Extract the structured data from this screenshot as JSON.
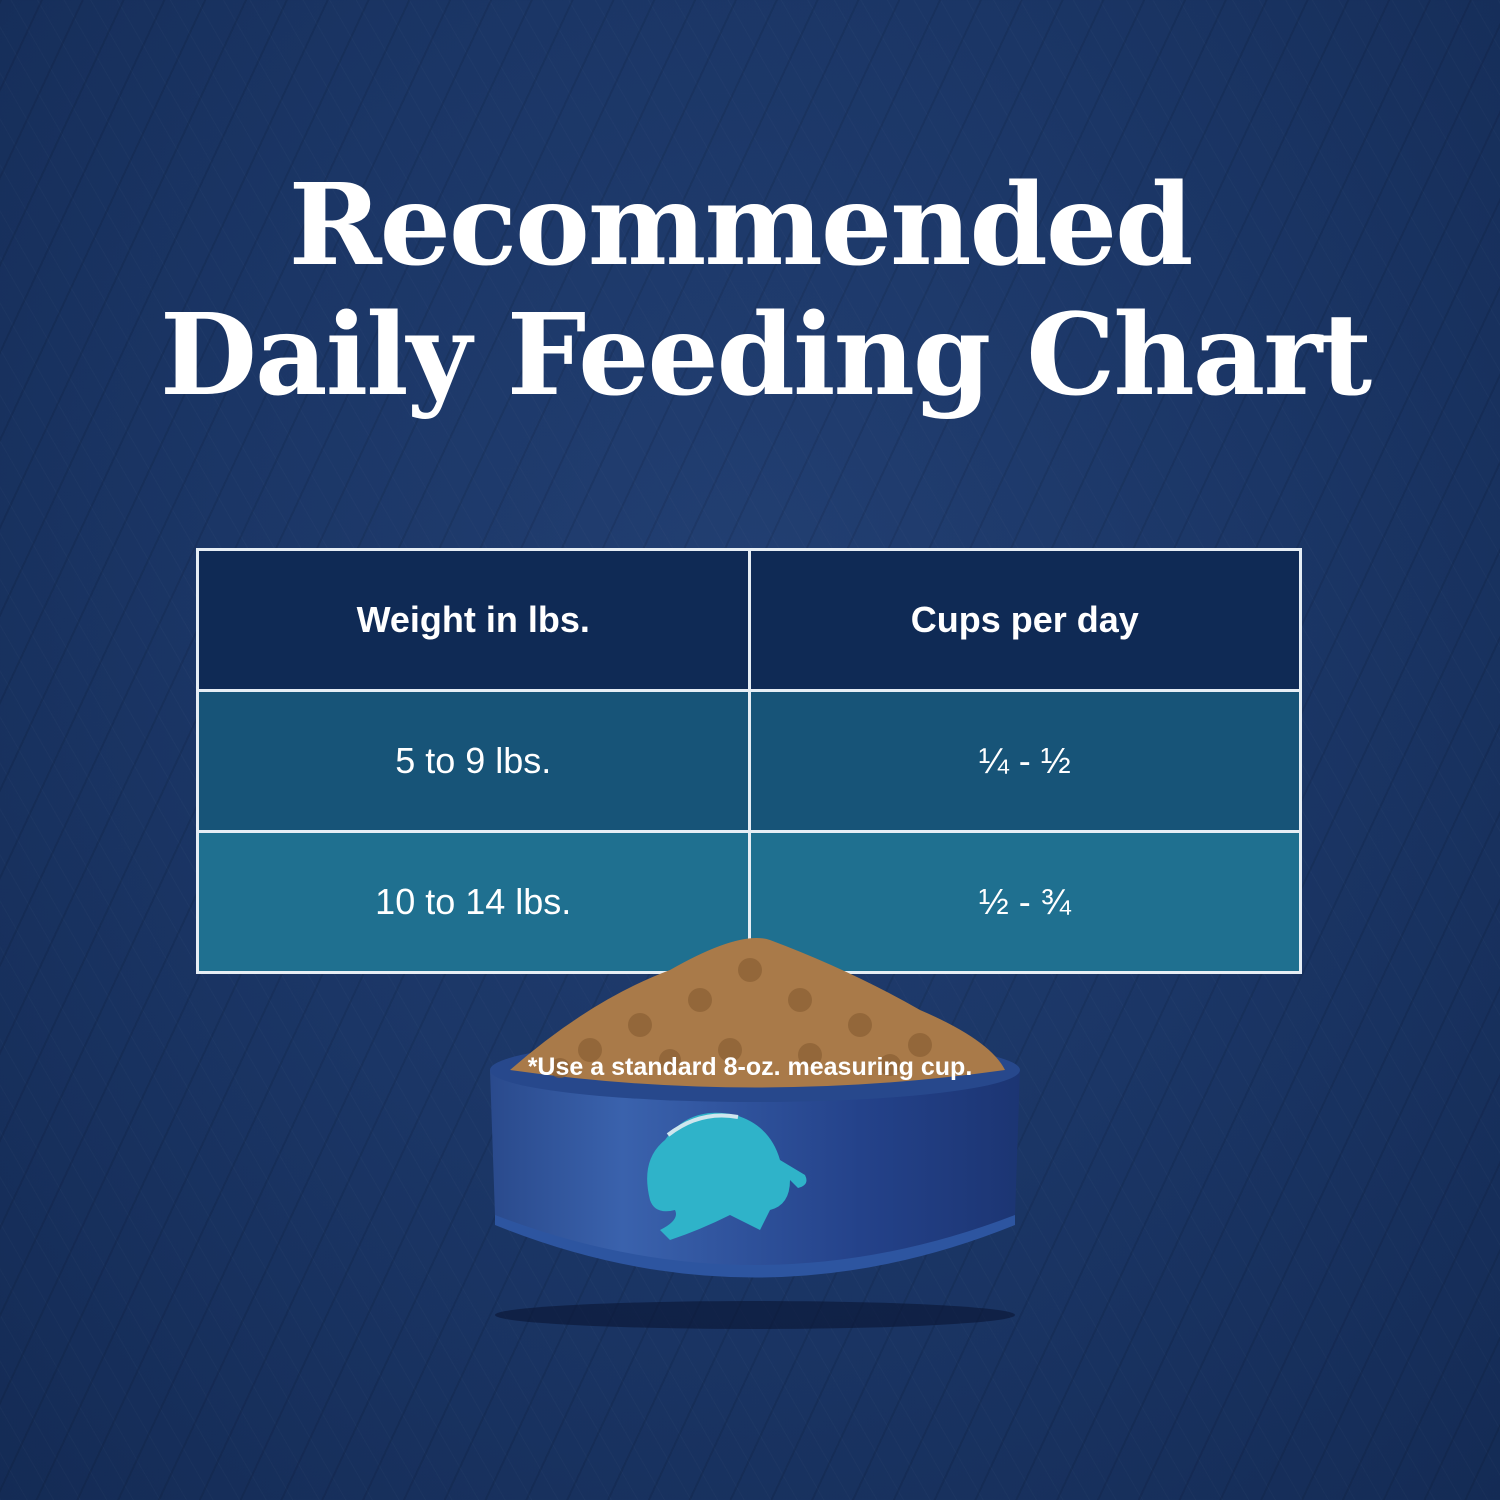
{
  "title": {
    "line1": "Recommended",
    "line2": "Daily Feeding Chart"
  },
  "table": {
    "headers": [
      "Weight in lbs.",
      "Cups per day"
    ],
    "rows": [
      [
        "5 to 9 lbs.",
        "¼ - ½"
      ],
      [
        "10 to 14 lbs.",
        "½ - ¾"
      ]
    ]
  },
  "footnote": "*Use a standard 8-oz. measuring cup.",
  "colors": {
    "background": "#1b3666",
    "header": "#0f2a55",
    "row1": "#175478",
    "row2": "#1f7090",
    "bowl": "#2b4f95",
    "logo": "#2fb3c9"
  },
  "image": {
    "bowl_logo": "bison-icon"
  }
}
